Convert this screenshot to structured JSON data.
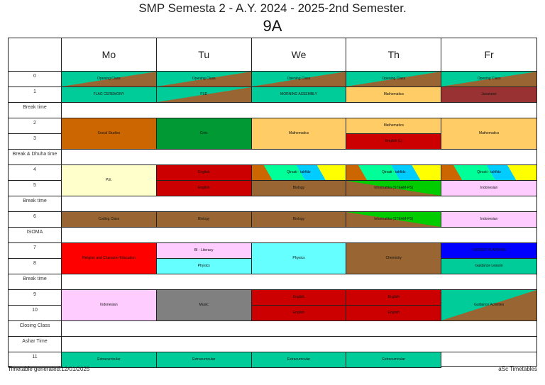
{
  "header": {
    "title": "SMP Semesta 2 - A.Y. 2024 - 2025-2nd Semester.",
    "class_name": "9A"
  },
  "days": [
    "Mo",
    "Tu",
    "We",
    "Th",
    "Fr"
  ],
  "rows": [
    {
      "label": "0",
      "type": "period"
    },
    {
      "label": "1",
      "type": "period"
    },
    {
      "label": "Break time",
      "type": "break"
    },
    {
      "label": "2",
      "type": "period"
    },
    {
      "label": "3",
      "type": "period"
    },
    {
      "label": "Break & Dhuha time",
      "type": "break"
    },
    {
      "label": "4",
      "type": "period"
    },
    {
      "label": "5",
      "type": "period"
    },
    {
      "label": "Break time",
      "type": "break"
    },
    {
      "label": "6",
      "type": "period"
    },
    {
      "label": "ISOMA",
      "type": "break"
    },
    {
      "label": "7",
      "type": "period"
    },
    {
      "label": "8",
      "type": "period"
    },
    {
      "label": "Break time",
      "type": "break"
    },
    {
      "label": "9",
      "type": "period"
    },
    {
      "label": "10",
      "type": "period"
    },
    {
      "label": "Closing Class",
      "type": "break"
    },
    {
      "label": "Ashar Time",
      "type": "break"
    },
    {
      "label": "11",
      "type": "period"
    }
  ],
  "lessons": [
    {
      "day": 0,
      "row": 0,
      "span": 1,
      "subject": "Opening Class",
      "bg": "#00cc99",
      "stripe": "diag-brown"
    },
    {
      "day": 1,
      "row": 0,
      "span": 1,
      "subject": "Opening Class",
      "bg": "#00cc99",
      "stripe": "diag-brown"
    },
    {
      "day": 2,
      "row": 0,
      "span": 1,
      "subject": "Opening Class",
      "bg": "#00cc99",
      "stripe": "diag-brown"
    },
    {
      "day": 3,
      "row": 0,
      "span": 1,
      "subject": "Opening Class",
      "bg": "#00cc99",
      "stripe": "diag-brown"
    },
    {
      "day": 4,
      "row": 0,
      "span": 1,
      "subject": "Opening Class",
      "bg": "#00cc99",
      "stripe": "diag-brown"
    },
    {
      "day": 0,
      "row": 1,
      "span": 1,
      "subject": "FLAG CEREMONY",
      "bg": "#00cc99",
      "stripe": "none"
    },
    {
      "day": 1,
      "row": 1,
      "span": 1,
      "subject": "FSD",
      "bg": "#00cc99",
      "stripe": "diag-brown"
    },
    {
      "day": 2,
      "row": 1,
      "span": 1,
      "subject": "MORNING ASSEMBLY",
      "bg": "#00cc99",
      "stripe": "none"
    },
    {
      "day": 3,
      "row": 1,
      "span": 1,
      "subject": "Mathematics",
      "bg": "#ffcc66",
      "stripe": "none"
    },
    {
      "day": 4,
      "row": 1,
      "span": 1,
      "subject": "Javanese",
      "bg": "#993333",
      "stripe": "none"
    },
    {
      "day": 0,
      "row": 3,
      "span": 2,
      "subject": "Social Studies",
      "bg": "#cc6600",
      "stripe": "none"
    },
    {
      "day": 1,
      "row": 3,
      "span": 2,
      "subject": "Civic",
      "bg": "#009933",
      "stripe": "none"
    },
    {
      "day": 2,
      "row": 3,
      "span": 2,
      "subject": "Mathematics",
      "bg": "#ffcc66",
      "stripe": "none"
    },
    {
      "day": 3,
      "row": 3,
      "span": 1,
      "subject": "Mathematics",
      "bg": "#ffcc66",
      "stripe": "none"
    },
    {
      "day": 3,
      "row": 4,
      "span": 1,
      "subject": "English (L)",
      "bg": "#cc0000",
      "stripe": "none"
    },
    {
      "day": 4,
      "row": 3,
      "span": 2,
      "subject": "Mathematics",
      "bg": "#ffcc66",
      "stripe": "none"
    },
    {
      "day": 0,
      "row": 6,
      "span": 2,
      "subject": "P.E.",
      "bg": "#ffffcc",
      "stripe": "none"
    },
    {
      "day": 1,
      "row": 6,
      "span": 1,
      "subject": "English",
      "bg": "#cc0000",
      "stripe": "none"
    },
    {
      "day": 2,
      "row": 6,
      "span": 1,
      "subject": "Qirsati - tahfidz",
      "bg": "#00ff99",
      "stripe": "multi"
    },
    {
      "day": 3,
      "row": 6,
      "span": 1,
      "subject": "Qirsati - tahfidz",
      "bg": "#00ff99",
      "stripe": "multi"
    },
    {
      "day": 4,
      "row": 6,
      "span": 1,
      "subject": "Qirsati - tahfidz",
      "bg": "#00ff99",
      "stripe": "multi"
    },
    {
      "day": 1,
      "row": 7,
      "span": 1,
      "subject": "English",
      "bg": "#cc0000",
      "stripe": "none"
    },
    {
      "day": 2,
      "row": 7,
      "span": 1,
      "subject": "Biology",
      "bg": "#996633",
      "stripe": "none"
    },
    {
      "day": 3,
      "row": 7,
      "span": 1,
      "subject": "Informatika (STEAM-PS)",
      "bg": "#00cc00",
      "stripe": "diag-brown-inv"
    },
    {
      "day": 4,
      "row": 7,
      "span": 1,
      "subject": "Indonesian",
      "bg": "#ffccff",
      "stripe": "none"
    },
    {
      "day": 0,
      "row": 9,
      "span": 1,
      "subject": "Coding Class",
      "bg": "#996633",
      "stripe": "none"
    },
    {
      "day": 1,
      "row": 9,
      "span": 1,
      "subject": "Biology",
      "bg": "#996633",
      "stripe": "none"
    },
    {
      "day": 2,
      "row": 9,
      "span": 1,
      "subject": "Biology",
      "bg": "#996633",
      "stripe": "none"
    },
    {
      "day": 3,
      "row": 9,
      "span": 1,
      "subject": "Informatika (STEAM-PS)",
      "bg": "#00cc00",
      "stripe": "diag-brown-inv"
    },
    {
      "day": 4,
      "row": 9,
      "span": 1,
      "subject": "Indonesian",
      "bg": "#ffccff",
      "stripe": "none"
    },
    {
      "day": 0,
      "row": 11,
      "span": 2,
      "subject": "Religion and Character Education",
      "bg": "#ff0000",
      "stripe": "none"
    },
    {
      "day": 1,
      "row": 11,
      "span": 1,
      "subject": "BI - Literacy",
      "bg": "#ffccff",
      "stripe": "none"
    },
    {
      "day": 1,
      "row": 12,
      "span": 1,
      "subject": "Physics",
      "bg": "#66ffff",
      "stripe": "none"
    },
    {
      "day": 2,
      "row": 11,
      "span": 2,
      "subject": "Physics",
      "bg": "#66ffff",
      "stripe": "none"
    },
    {
      "day": 3,
      "row": 11,
      "span": 2,
      "subject": "Chemistry",
      "bg": "#996633",
      "stripe": "none"
    },
    {
      "day": 4,
      "row": 11,
      "span": 1,
      "subject": "CAREER PLANNING",
      "bg": "#0000ff",
      "stripe": "none"
    },
    {
      "day": 4,
      "row": 12,
      "span": 1,
      "subject": "Guidance Lesson",
      "bg": "#00cc99",
      "stripe": "none"
    },
    {
      "day": 0,
      "row": 14,
      "span": 2,
      "subject": "Indonesian",
      "bg": "#ffccff",
      "stripe": "none"
    },
    {
      "day": 1,
      "row": 14,
      "span": 2,
      "subject": "Music",
      "bg": "#808080",
      "stripe": "none"
    },
    {
      "day": 2,
      "row": 14,
      "span": 1,
      "subject": "English",
      "bg": "#cc0000",
      "stripe": "none"
    },
    {
      "day": 2,
      "row": 15,
      "span": 1,
      "subject": "English",
      "bg": "#cc0000",
      "stripe": "none"
    },
    {
      "day": 3,
      "row": 14,
      "span": 1,
      "subject": "English",
      "bg": "#cc0000",
      "stripe": "none"
    },
    {
      "day": 3,
      "row": 15,
      "span": 1,
      "subject": "English",
      "bg": "#cc0000",
      "stripe": "none"
    },
    {
      "day": 4,
      "row": 14,
      "span": 2,
      "subject": "Guidance Activities",
      "bg": "#00cc99",
      "stripe": "diag-brown"
    },
    {
      "day": 0,
      "row": 18,
      "span": 1,
      "subject": "Extracurricular",
      "bg": "#00cc99",
      "stripe": "none"
    },
    {
      "day": 1,
      "row": 18,
      "span": 1,
      "subject": "Extracurricular",
      "bg": "#00cc99",
      "stripe": "none"
    },
    {
      "day": 2,
      "row": 18,
      "span": 1,
      "subject": "Extracurricular",
      "bg": "#00cc99",
      "stripe": "none"
    },
    {
      "day": 3,
      "row": 18,
      "span": 1,
      "subject": "Extracurricular",
      "bg": "#00cc99",
      "stripe": "none"
    }
  ],
  "footer": {
    "generated": "Timetable generated:12/01/2025",
    "brand": "aSc Timetables"
  }
}
